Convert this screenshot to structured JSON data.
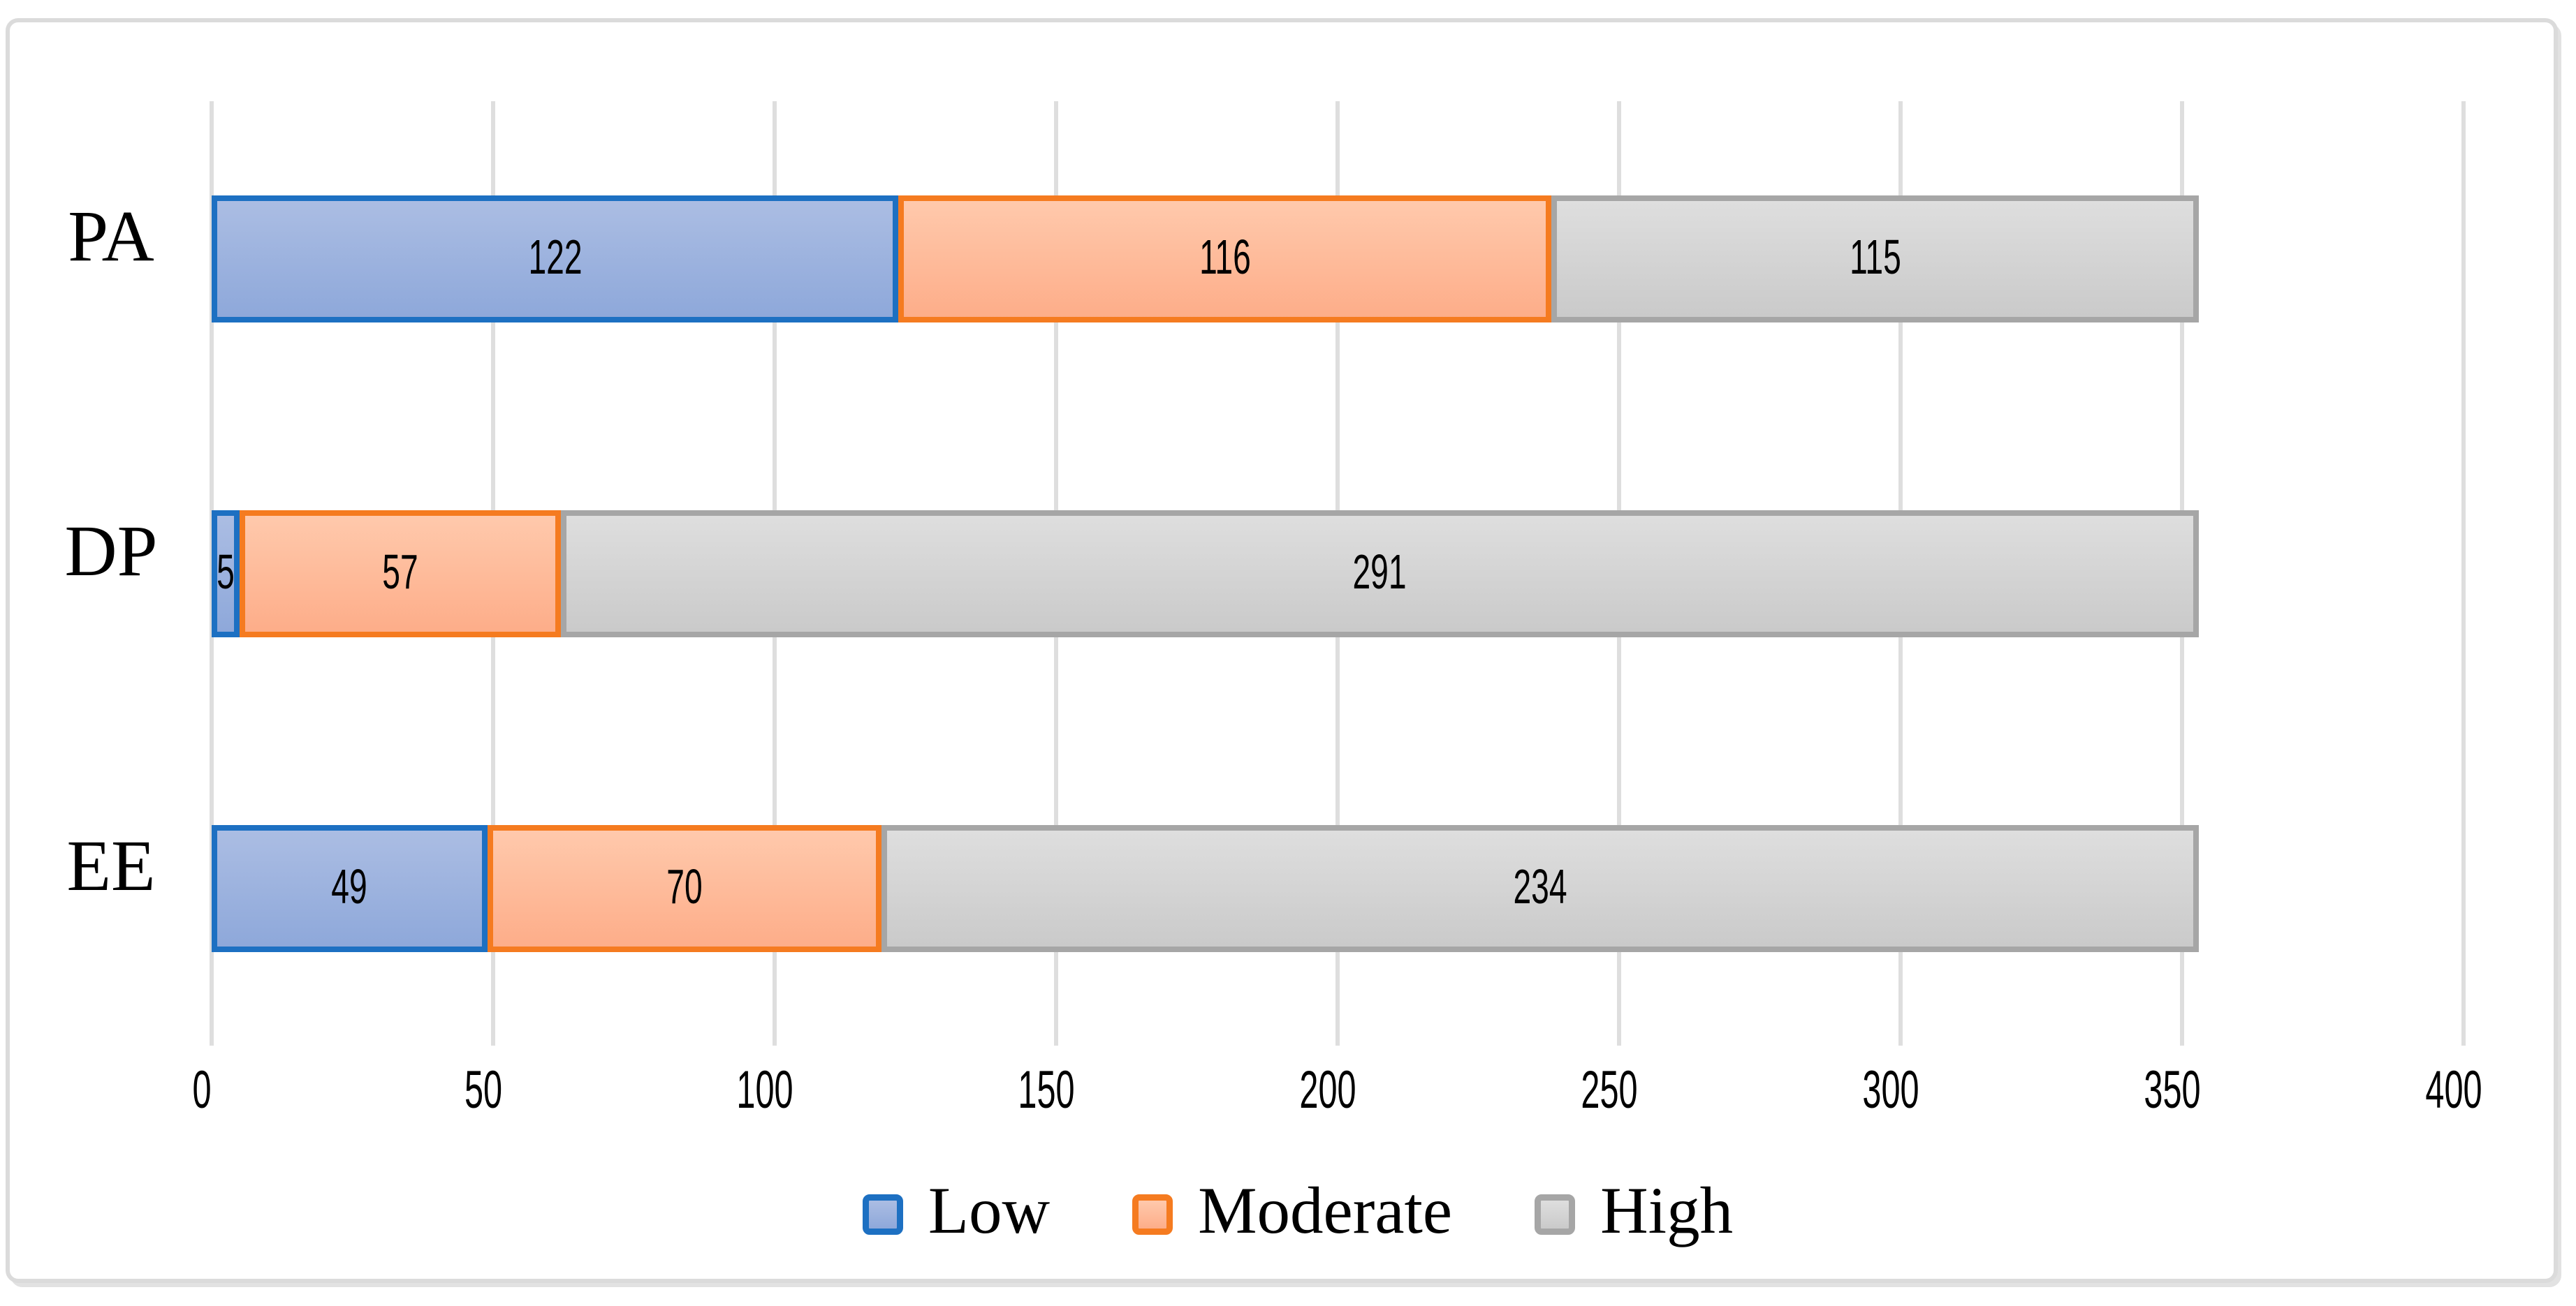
{
  "figure": {
    "kind": "horizontal-stacked-bar-chart",
    "background": "#ffffff",
    "frame_border_color": "#DBDBDB"
  },
  "chart_data": {
    "type": "bar",
    "orientation": "horizontal",
    "stacked": true,
    "title": "",
    "xlabel": "",
    "ylabel": "",
    "categories": [
      "PA",
      "DP",
      "EE"
    ],
    "series": [
      {
        "name": "Low",
        "values": [
          122,
          5,
          49
        ],
        "border_color": "#1D70C2",
        "fill_top": "#ABBDE3",
        "fill_bottom": "#8EA8DA"
      },
      {
        "name": "Moderate",
        "values": [
          116,
          57,
          70
        ],
        "border_color": "#F57B20",
        "fill_top": "#FFC9AC",
        "fill_bottom": "#FDAD89"
      },
      {
        "name": "High",
        "values": [
          115,
          291,
          234
        ],
        "border_color": "#A6A6A6",
        "fill_top": "#DEDEDE",
        "fill_bottom": "#CACACA"
      }
    ],
    "row_totals": [
      353,
      353,
      353
    ],
    "x_ticks": [
      0,
      50,
      100,
      150,
      200,
      250,
      300,
      350,
      400
    ],
    "xlim": [
      0,
      400
    ],
    "grid": true,
    "gridline_color": "#DEDEDE",
    "data_labels": true,
    "legend_position": "bottom",
    "legend_entries": [
      "Low",
      "Moderate",
      "High"
    ]
  }
}
